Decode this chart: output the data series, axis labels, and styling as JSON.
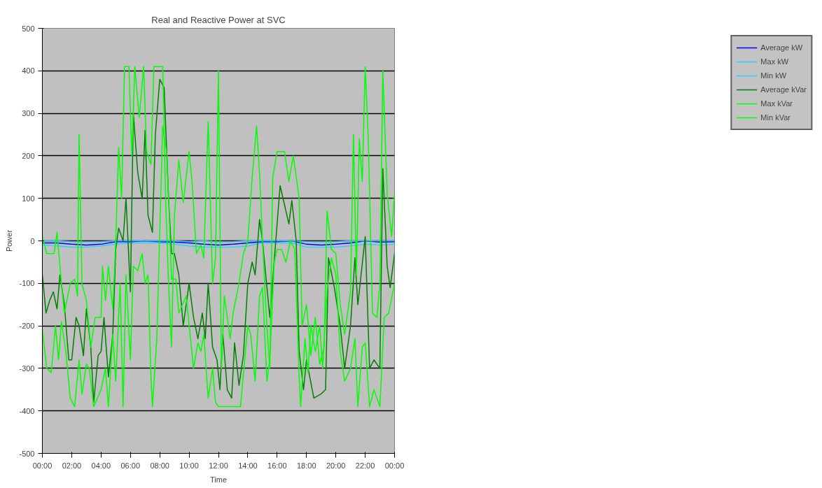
{
  "chart_data": {
    "type": "line",
    "title": "Real and Reactive Power at SVC",
    "xlabel": "Time",
    "ylabel": "Power",
    "xlim": [
      0,
      24
    ],
    "xticks": [
      {
        "value": 0,
        "label": "00:00"
      },
      {
        "value": 2,
        "label": "02:00"
      },
      {
        "value": 4,
        "label": "04:00"
      },
      {
        "value": 6,
        "label": "06:00"
      },
      {
        "value": 8,
        "label": "08:00"
      },
      {
        "value": 10,
        "label": "10:00"
      },
      {
        "value": 12,
        "label": "12:00"
      },
      {
        "value": 14,
        "label": "14:00"
      },
      {
        "value": 16,
        "label": "16:00"
      },
      {
        "value": 18,
        "label": "18:00"
      },
      {
        "value": 20,
        "label": "20:00"
      },
      {
        "value": 22,
        "label": "22:00"
      },
      {
        "value": 24,
        "label": "00:00"
      }
    ],
    "ylim": [
      -500,
      500
    ],
    "yticks": [
      -500,
      -400,
      -300,
      -200,
      -100,
      0,
      100,
      200,
      300,
      400,
      500
    ],
    "grid": "y",
    "legend": "right",
    "marker": "none",
    "line_style": "solid",
    "series": [
      {
        "name": "Average kW",
        "color": "#0000ff",
        "x": [
          0,
          1,
          2,
          3,
          4,
          5,
          6,
          7,
          8,
          9,
          10,
          11,
          12,
          13,
          14,
          15,
          16,
          17,
          18,
          19,
          20,
          21,
          22,
          23,
          24
        ],
        "values": [
          -5,
          -5,
          -8,
          -10,
          -8,
          -2,
          -2,
          0,
          -2,
          -3,
          -5,
          -8,
          -10,
          -8,
          -5,
          -2,
          -2,
          0,
          -8,
          -10,
          -8,
          -5,
          0,
          -3,
          -2
        ]
      },
      {
        "name": "Max kW",
        "color": "#33ccff",
        "x": [
          0,
          1,
          2,
          3,
          4,
          5,
          6,
          7,
          8,
          9,
          10,
          11,
          12,
          13,
          14,
          15,
          16,
          17,
          18,
          19,
          20,
          21,
          22,
          23,
          24
        ],
        "values": [
          0,
          0,
          -2,
          -3,
          -2,
          0,
          0,
          0,
          0,
          0,
          -2,
          0,
          -3,
          -2,
          0,
          0,
          0,
          0,
          -2,
          -3,
          -2,
          0,
          0,
          0,
          0
        ]
      },
      {
        "name": "Min kW",
        "color": "#33ccff",
        "x": [
          0,
          1,
          2,
          3,
          4,
          5,
          6,
          7,
          8,
          9,
          10,
          11,
          12,
          13,
          14,
          15,
          16,
          17,
          18,
          19,
          20,
          21,
          22,
          23,
          24
        ],
        "values": [
          -10,
          -12,
          -15,
          -15,
          -12,
          -8,
          -5,
          -5,
          -5,
          -8,
          -12,
          -15,
          -15,
          -15,
          -12,
          -5,
          -5,
          -5,
          -15,
          -15,
          -15,
          -12,
          -8,
          -10,
          -8
        ]
      },
      {
        "name": "Average kVar",
        "color": "#008000",
        "x": [
          0,
          0.25,
          0.5,
          0.75,
          1.0,
          1.2,
          1.5,
          1.8,
          2.0,
          2.3,
          2.5,
          2.8,
          3.0,
          3.3,
          3.5,
          3.8,
          4.0,
          4.2,
          4.5,
          4.8,
          5.0,
          5.2,
          5.5,
          5.7,
          6.0,
          6.2,
          6.5,
          6.8,
          7.0,
          7.2,
          7.5,
          7.7,
          8.0,
          8.3,
          8.6,
          8.8,
          9.0,
          9.3,
          9.6,
          10.0,
          10.3,
          10.6,
          10.9,
          11.1,
          11.3,
          11.6,
          11.9,
          12.1,
          12.3,
          12.6,
          12.9,
          13.1,
          13.4,
          13.7,
          14.0,
          14.3,
          14.5,
          14.8,
          15.0,
          15.5,
          16.2,
          16.8,
          17.0,
          17.3,
          17.5,
          17.8,
          18.0,
          18.5,
          19.0,
          19.3,
          19.5,
          19.9,
          20.3,
          20.6,
          21.0,
          21.3,
          21.5,
          22.0,
          22.3,
          22.6,
          23.0,
          23.2,
          23.5,
          23.7,
          24.0
        ],
        "values": [
          -80,
          -170,
          -140,
          -120,
          -160,
          -80,
          -150,
          -280,
          -280,
          -180,
          -200,
          -270,
          -160,
          -250,
          -380,
          -270,
          -260,
          -180,
          -320,
          -220,
          -20,
          30,
          0,
          100,
          -120,
          300,
          160,
          100,
          260,
          60,
          20,
          250,
          380,
          360,
          100,
          -30,
          -30,
          -80,
          -200,
          -100,
          -180,
          -230,
          -170,
          -230,
          -100,
          -250,
          -280,
          -350,
          -220,
          -350,
          -370,
          -240,
          -340,
          -270,
          -100,
          -50,
          -80,
          50,
          0,
          -180,
          130,
          40,
          95,
          0,
          -260,
          -350,
          -280,
          -370,
          -360,
          -350,
          -40,
          -110,
          -200,
          -300,
          -200,
          -40,
          -150,
          10,
          -300,
          -280,
          -300,
          170,
          -60,
          -110,
          -30
        ]
      },
      {
        "name": "Max kVar",
        "color": "#00ff00",
        "x": [
          0,
          0.3,
          0.8,
          1.0,
          1.3,
          1.5,
          1.9,
          2.2,
          2.4,
          2.5,
          2.7,
          3.0,
          3.3,
          3.6,
          4.0,
          4.1,
          4.3,
          4.5,
          4.8,
          5.0,
          5.2,
          5.4,
          5.6,
          5.9,
          6.1,
          6.3,
          6.6,
          6.9,
          7.1,
          7.4,
          7.6,
          8.2,
          8.4,
          8.6,
          8.8,
          9.0,
          9.3,
          9.6,
          10.0,
          10.2,
          10.5,
          10.8,
          11.0,
          11.3,
          11.6,
          11.8,
          12.0,
          12.2,
          12.4,
          12.8,
          13.0,
          13.4,
          13.7,
          14.0,
          14.3,
          14.6,
          14.8,
          15.0,
          15.3,
          15.5,
          15.7,
          16.0,
          16.5,
          16.8,
          17.1,
          17.5,
          17.7,
          18.0,
          18.3,
          18.6,
          18.9,
          19.2,
          19.4,
          19.7,
          20.0,
          20.3,
          20.6,
          21.0,
          21.2,
          21.4,
          21.6,
          21.8,
          22.0,
          22.2,
          22.5,
          22.8,
          23.0,
          23.2,
          23.5,
          23.8,
          24.0
        ],
        "values": [
          10,
          -30,
          -30,
          20,
          -100,
          -170,
          -100,
          -90,
          -130,
          250,
          -100,
          -140,
          -250,
          -180,
          -180,
          -60,
          -140,
          -60,
          -160,
          0,
          220,
          100,
          410,
          410,
          200,
          410,
          290,
          410,
          210,
          180,
          410,
          410,
          100,
          -100,
          -250,
          60,
          190,
          90,
          210,
          140,
          -30,
          -10,
          -40,
          280,
          -100,
          -40,
          400,
          -300,
          -130,
          -230,
          -170,
          -100,
          -30,
          0,
          150,
          270,
          160,
          0,
          -200,
          -300,
          150,
          210,
          210,
          140,
          200,
          100,
          -200,
          -150,
          -270,
          -180,
          -290,
          -250,
          70,
          -20,
          -30,
          -150,
          -220,
          -120,
          250,
          -80,
          240,
          140,
          410,
          250,
          -170,
          -180,
          -100,
          400,
          110,
          10,
          110
        ]
      },
      {
        "name": "Min kVar",
        "color": "#00ff00",
        "x": [
          0,
          0.3,
          0.6,
          0.9,
          1.1,
          1.3,
          1.6,
          1.9,
          2.2,
          2.5,
          2.7,
          3.0,
          3.2,
          3.5,
          4.0,
          4.3,
          4.5,
          4.8,
          5.0,
          5.3,
          5.5,
          5.7,
          6.0,
          6.2,
          6.5,
          6.8,
          7.0,
          7.2,
          7.4,
          7.5,
          7.8,
          8.2,
          8.5,
          8.8,
          9.1,
          9.3,
          9.8,
          10.3,
          10.6,
          10.8,
          11.0,
          11.3,
          11.6,
          11.8,
          12.0,
          12.5,
          13.0,
          13.5,
          14.0,
          14.2,
          14.5,
          14.8,
          15.0,
          15.3,
          15.5,
          15.8,
          16.0,
          16.3,
          16.6,
          16.9,
          17.2,
          17.5,
          17.6,
          17.9,
          18.1,
          18.3,
          18.6,
          18.9,
          19.1,
          19.4,
          19.7,
          20.0,
          20.3,
          20.6,
          21.0,
          21.3,
          21.5,
          21.8,
          22.0,
          22.3,
          22.6,
          23.0,
          23.3,
          23.6,
          24.0
        ],
        "values": [
          -210,
          -300,
          -310,
          -200,
          -280,
          -190,
          -260,
          -370,
          -390,
          -280,
          -360,
          -290,
          -300,
          -390,
          -350,
          -300,
          -390,
          -220,
          -330,
          -100,
          -390,
          -80,
          -280,
          -60,
          -70,
          -30,
          -100,
          -80,
          -320,
          -390,
          -230,
          270,
          200,
          -90,
          -90,
          -170,
          -130,
          -300,
          -240,
          -260,
          -220,
          -370,
          -300,
          -380,
          -390,
          -390,
          -390,
          -390,
          -200,
          -220,
          -330,
          -130,
          -110,
          -330,
          -280,
          -50,
          -20,
          -20,
          -50,
          0,
          -20,
          -320,
          -390,
          -230,
          -310,
          -200,
          -260,
          -200,
          -300,
          -120,
          -40,
          -80,
          -260,
          -330,
          -300,
          -230,
          -390,
          -250,
          -240,
          -390,
          -350,
          -390,
          -180,
          -170,
          -100
        ]
      }
    ]
  }
}
